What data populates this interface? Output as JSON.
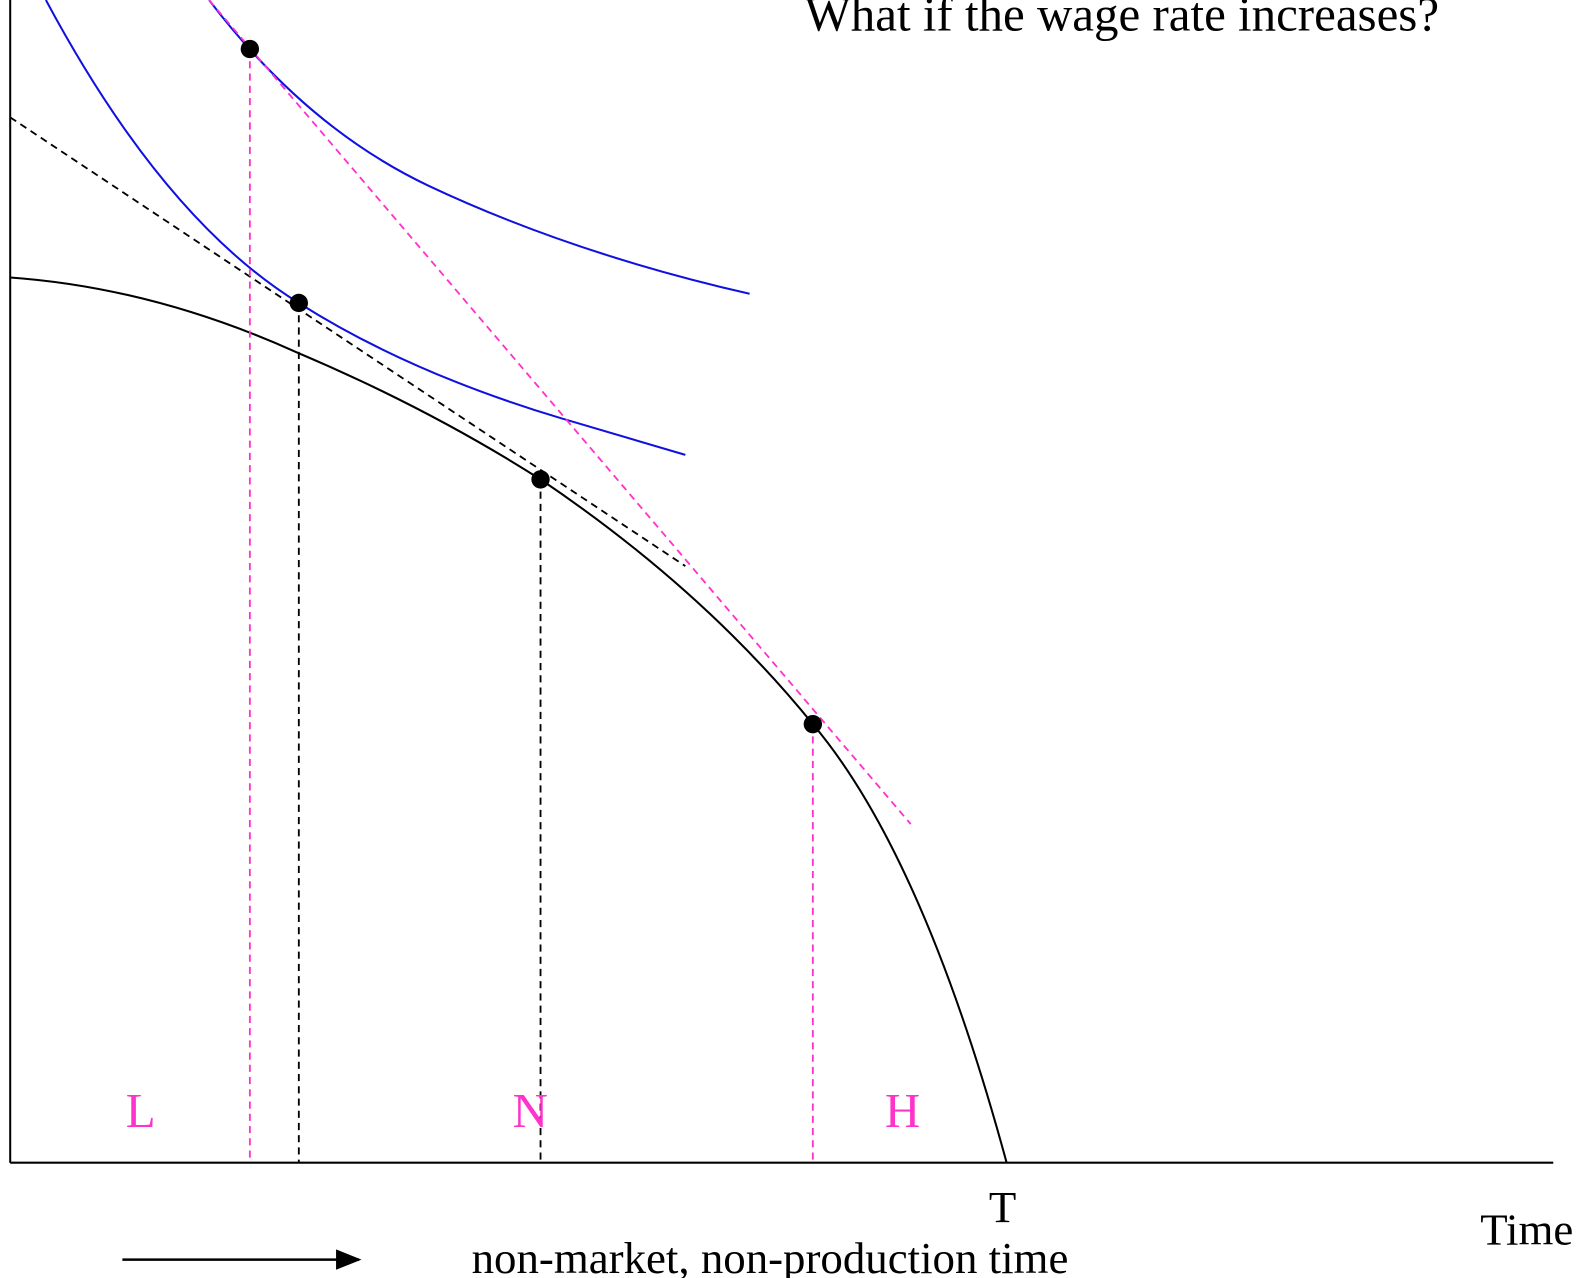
{
  "title": "What if the wage rate increases?",
  "labels": {
    "low": "L",
    "normal": "N",
    "high": "H",
    "total_time": "T"
  },
  "x_axis_label": "Time",
  "arrow_label": "non-market, non-production time"
}
